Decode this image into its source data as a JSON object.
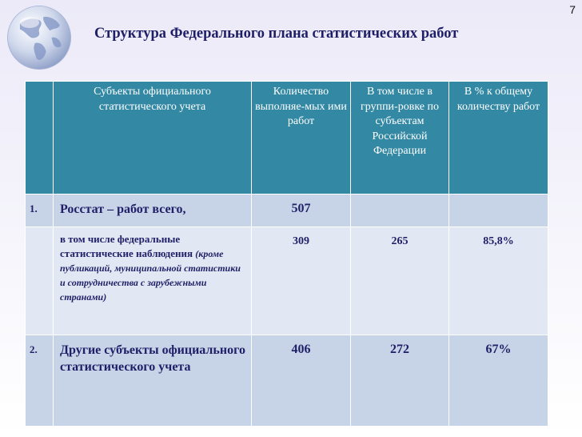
{
  "slide": {
    "title": "Структура Федерального плана статистических работ",
    "page_number": "7"
  },
  "table": {
    "headers": {
      "num": "",
      "subject": "Субъекты официального статистического учета",
      "count": "Количество выполняе-мых ими работ",
      "grouped": "В том числе в группи-ровке по субъектам Российской Федерации",
      "percent": "В % к общему количеству работ"
    },
    "rows": [
      {
        "num": "1.",
        "label": "Росстат – работ всего,",
        "count": "507",
        "grouped": "",
        "percent": ""
      },
      {
        "num": "",
        "label_main": "в том числе  федеральные статистические наблюдения",
        "label_note": "(кроме публикаций, муниципальной статистики и сотрудничества с зарубежными странами)",
        "count": "309",
        "grouped": "265",
        "percent": "85,8%"
      },
      {
        "num": "2.",
        "label": "Другие субъекты официального статистического учета",
        "count": "406",
        "grouped": "272",
        "percent": "67%"
      }
    ]
  },
  "colors": {
    "header_bg": "#3388a4",
    "row_dark": "#c7d3e6",
    "row_light": "#e1e8f3",
    "text": "#1f1f68"
  },
  "icons": [
    "globe-icon"
  ]
}
